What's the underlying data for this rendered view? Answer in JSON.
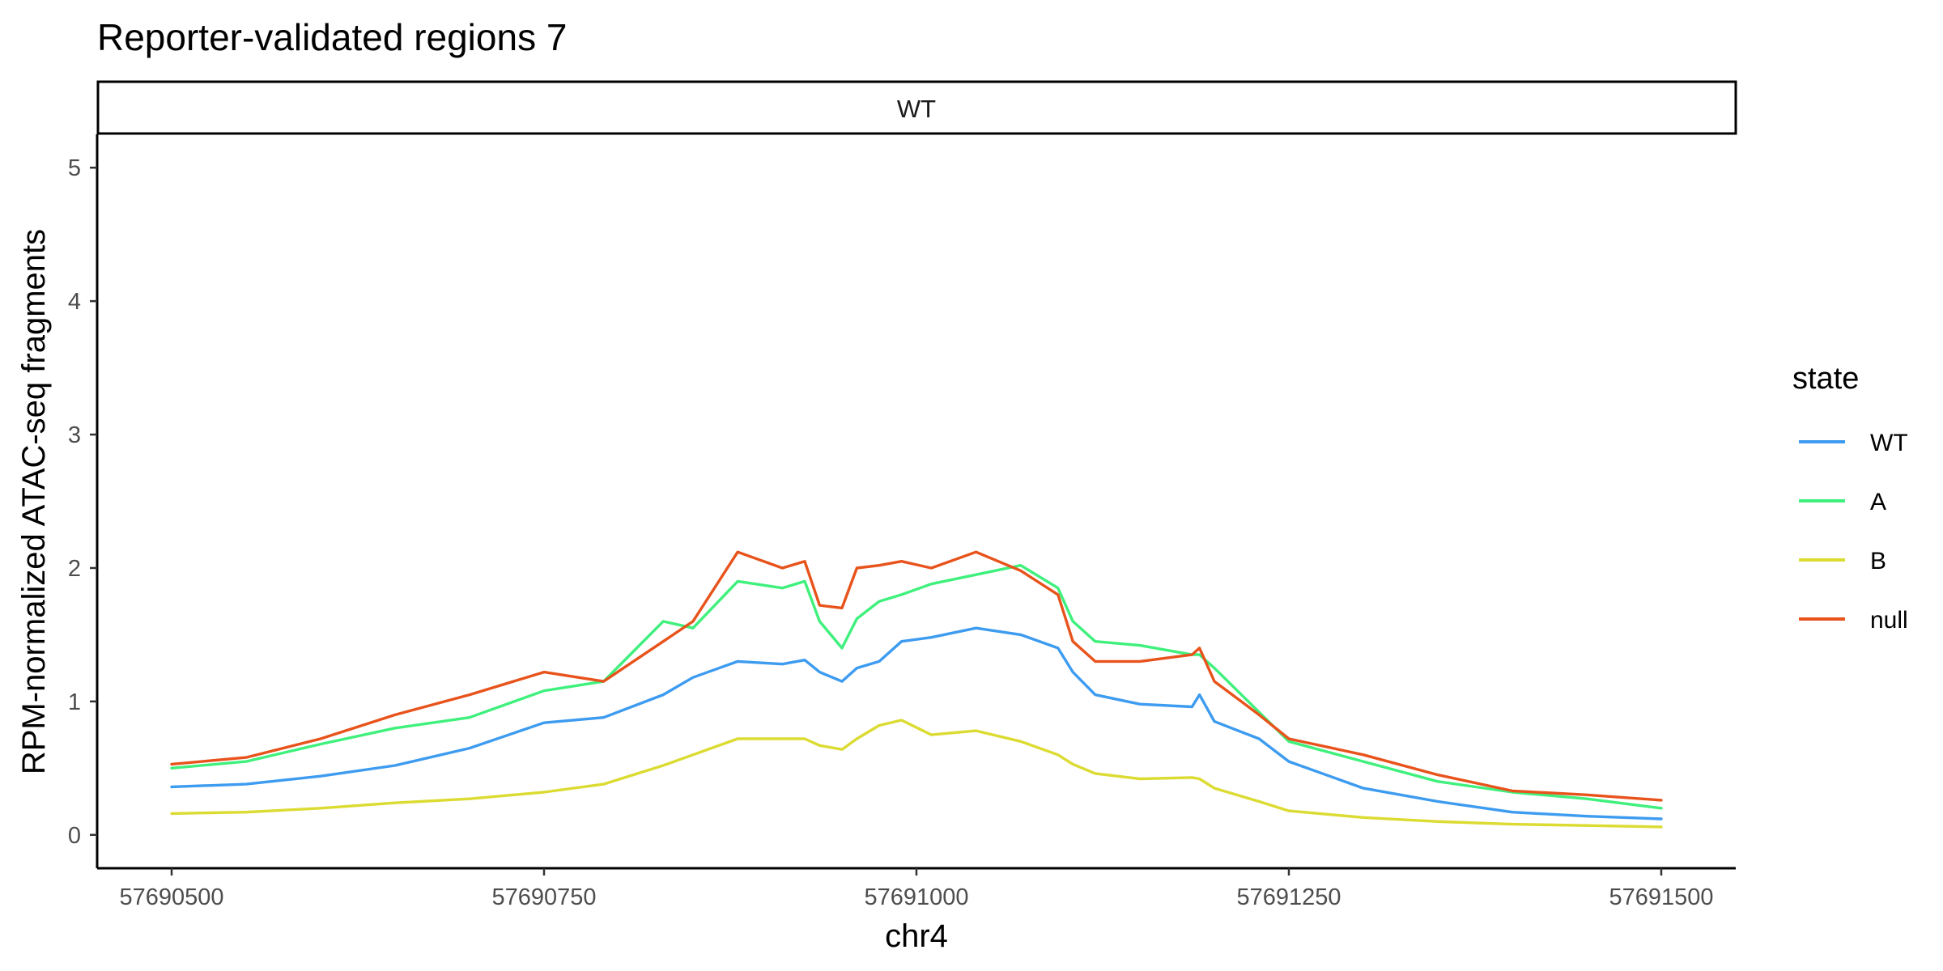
{
  "chart_data": {
    "type": "line",
    "title": "Reporter-validated regions 7",
    "facet_label": "WT",
    "xlabel": "chr4",
    "ylabel": "RPM-normalized ATAC-seq fragments",
    "xlim": [
      57690450,
      57691550
    ],
    "ylim": [
      -0.25,
      5.25
    ],
    "x_ticks": [
      57690500,
      57690750,
      57691000,
      57691250,
      57691500
    ],
    "x_tick_labels": [
      "57690500",
      "57690750",
      "57691000",
      "57691250",
      "57691500"
    ],
    "y_ticks": [
      0,
      1,
      2,
      3,
      4,
      5
    ],
    "y_tick_labels": [
      "0",
      "1",
      "2",
      "3",
      "4",
      "5"
    ],
    "grid": false,
    "legend": {
      "title": "state",
      "position": "right"
    },
    "series": [
      {
        "name": "WT",
        "color": "#3d9bf0",
        "x": [
          57690500,
          57690550,
          57690600,
          57690650,
          57690700,
          57690750,
          57690790,
          57690830,
          57690850,
          57690880,
          57690910,
          57690925,
          57690935,
          57690950,
          57690960,
          57690975,
          57690990,
          57691010,
          57691040,
          57691070,
          57691095,
          57691105,
          57691120,
          57691150,
          57691185,
          57691190,
          57691200,
          57691230,
          57691250,
          57691300,
          57691350,
          57691400,
          57691450,
          57691500
        ],
        "y": [
          0.36,
          0.38,
          0.44,
          0.52,
          0.65,
          0.84,
          0.88,
          1.05,
          1.18,
          1.3,
          1.28,
          1.31,
          1.22,
          1.15,
          1.25,
          1.3,
          1.45,
          1.48,
          1.55,
          1.5,
          1.4,
          1.22,
          1.05,
          0.98,
          0.96,
          1.05,
          0.85,
          0.72,
          0.55,
          0.35,
          0.25,
          0.17,
          0.14,
          0.12
        ]
      },
      {
        "name": "A",
        "color": "#3ff07c",
        "x": [
          57690500,
          57690550,
          57690600,
          57690650,
          57690700,
          57690750,
          57690790,
          57690830,
          57690850,
          57690880,
          57690910,
          57690925,
          57690935,
          57690950,
          57690960,
          57690975,
          57690990,
          57691010,
          57691040,
          57691070,
          57691095,
          57691105,
          57691120,
          57691150,
          57691185,
          57691190,
          57691200,
          57691230,
          57691250,
          57691300,
          57691350,
          57691400,
          57691450,
          57691500
        ],
        "y": [
          0.5,
          0.55,
          0.68,
          0.8,
          0.88,
          1.08,
          1.15,
          1.6,
          1.55,
          1.9,
          1.85,
          1.9,
          1.6,
          1.4,
          1.62,
          1.75,
          1.8,
          1.88,
          1.95,
          2.02,
          1.85,
          1.6,
          1.45,
          1.42,
          1.35,
          1.35,
          1.25,
          0.92,
          0.7,
          0.55,
          0.4,
          0.32,
          0.27,
          0.2
        ]
      },
      {
        "name": "B",
        "color": "#dbdb32",
        "x": [
          57690500,
          57690550,
          57690600,
          57690650,
          57690700,
          57690750,
          57690790,
          57690830,
          57690850,
          57690880,
          57690910,
          57690925,
          57690935,
          57690950,
          57690960,
          57690975,
          57690990,
          57691010,
          57691040,
          57691070,
          57691095,
          57691105,
          57691120,
          57691150,
          57691185,
          57691190,
          57691200,
          57691230,
          57691250,
          57691300,
          57691350,
          57691400,
          57691450,
          57691500
        ],
        "y": [
          0.16,
          0.17,
          0.2,
          0.24,
          0.27,
          0.32,
          0.38,
          0.52,
          0.6,
          0.72,
          0.72,
          0.72,
          0.67,
          0.64,
          0.72,
          0.82,
          0.86,
          0.75,
          0.78,
          0.7,
          0.6,
          0.53,
          0.46,
          0.42,
          0.43,
          0.42,
          0.35,
          0.25,
          0.18,
          0.13,
          0.1,
          0.08,
          0.07,
          0.06
        ]
      },
      {
        "name": "null",
        "color": "#e8531c",
        "x": [
          57690500,
          57690550,
          57690600,
          57690650,
          57690700,
          57690750,
          57690790,
          57690830,
          57690850,
          57690880,
          57690910,
          57690925,
          57690935,
          57690950,
          57690960,
          57690975,
          57690990,
          57691010,
          57691040,
          57691070,
          57691095,
          57691105,
          57691120,
          57691150,
          57691185,
          57691190,
          57691200,
          57691230,
          57691250,
          57691300,
          57691350,
          57691400,
          57691450,
          57691500
        ],
        "y": [
          0.53,
          0.58,
          0.72,
          0.9,
          1.05,
          1.22,
          1.15,
          1.45,
          1.6,
          2.12,
          2.0,
          2.05,
          1.72,
          1.7,
          2.0,
          2.02,
          2.05,
          2.0,
          2.12,
          1.98,
          1.8,
          1.45,
          1.3,
          1.3,
          1.35,
          1.4,
          1.15,
          0.9,
          0.72,
          0.6,
          0.45,
          0.33,
          0.3,
          0.26
        ]
      }
    ]
  }
}
